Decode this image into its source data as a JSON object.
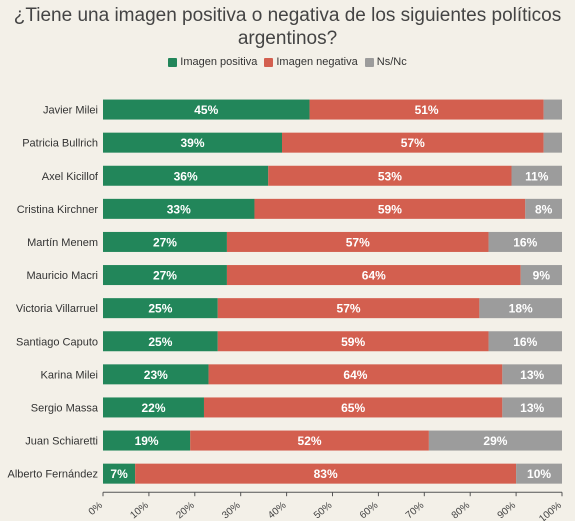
{
  "colors": {
    "background": "#f3f0e8",
    "positive": "#22865a",
    "negative": "#d35f4f",
    "nsnc": "#9c9c9c"
  },
  "chart_data": {
    "type": "bar",
    "orientation": "horizontal",
    "stacked": true,
    "title": "¿Tiene una imagen positiva o negativa de los siguientes políticos argentinos?",
    "title_lines": [
      "¿Tiene una imagen positiva o negativa de los siguientes políticos",
      "argentinos?"
    ],
    "legend_position": "top",
    "legend": [
      "Imagen positiva",
      "Imagen negativa",
      "Ns/Nc"
    ],
    "xlim": [
      0,
      100
    ],
    "x_ticks": [
      "0%",
      "10%",
      "20%",
      "30%",
      "40%",
      "50%",
      "60%",
      "70%",
      "80%",
      "90%",
      "100%"
    ],
    "grid": false,
    "categories": [
      "Javier Milei",
      "Patricia Bullrich",
      "Axel Kicillof",
      "Cristina Kirchner",
      "Martín Menem",
      "Mauricio Macri",
      "Victoria Villarruel",
      "Santiago Caputo",
      "Karina Milei",
      "Sergio Massa",
      "Juan Schiaretti",
      "Alberto Fernández"
    ],
    "series": [
      {
        "name": "Imagen positiva",
        "values": [
          45,
          39,
          36,
          33,
          27,
          27,
          25,
          25,
          23,
          22,
          19,
          7
        ],
        "labels": [
          "45%",
          "39%",
          "36%",
          "33%",
          "27%",
          "27%",
          "25%",
          "25%",
          "23%",
          "22%",
          "19%",
          "7%"
        ]
      },
      {
        "name": "Imagen negativa",
        "values": [
          51,
          57,
          53,
          59,
          57,
          64,
          57,
          59,
          64,
          65,
          52,
          83
        ],
        "labels": [
          "51%",
          "57%",
          "53%",
          "59%",
          "57%",
          "64%",
          "57%",
          "59%",
          "64%",
          "65%",
          "52%",
          "83%"
        ]
      },
      {
        "name": "Ns/Nc",
        "values": [
          4,
          4,
          11,
          8,
          16,
          9,
          18,
          16,
          13,
          13,
          29,
          10
        ],
        "labels": [
          "",
          "",
          "11%",
          "8%",
          "16%",
          "9%",
          "18%",
          "16%",
          "13%",
          "13%",
          "29%",
          "10%"
        ]
      }
    ]
  }
}
